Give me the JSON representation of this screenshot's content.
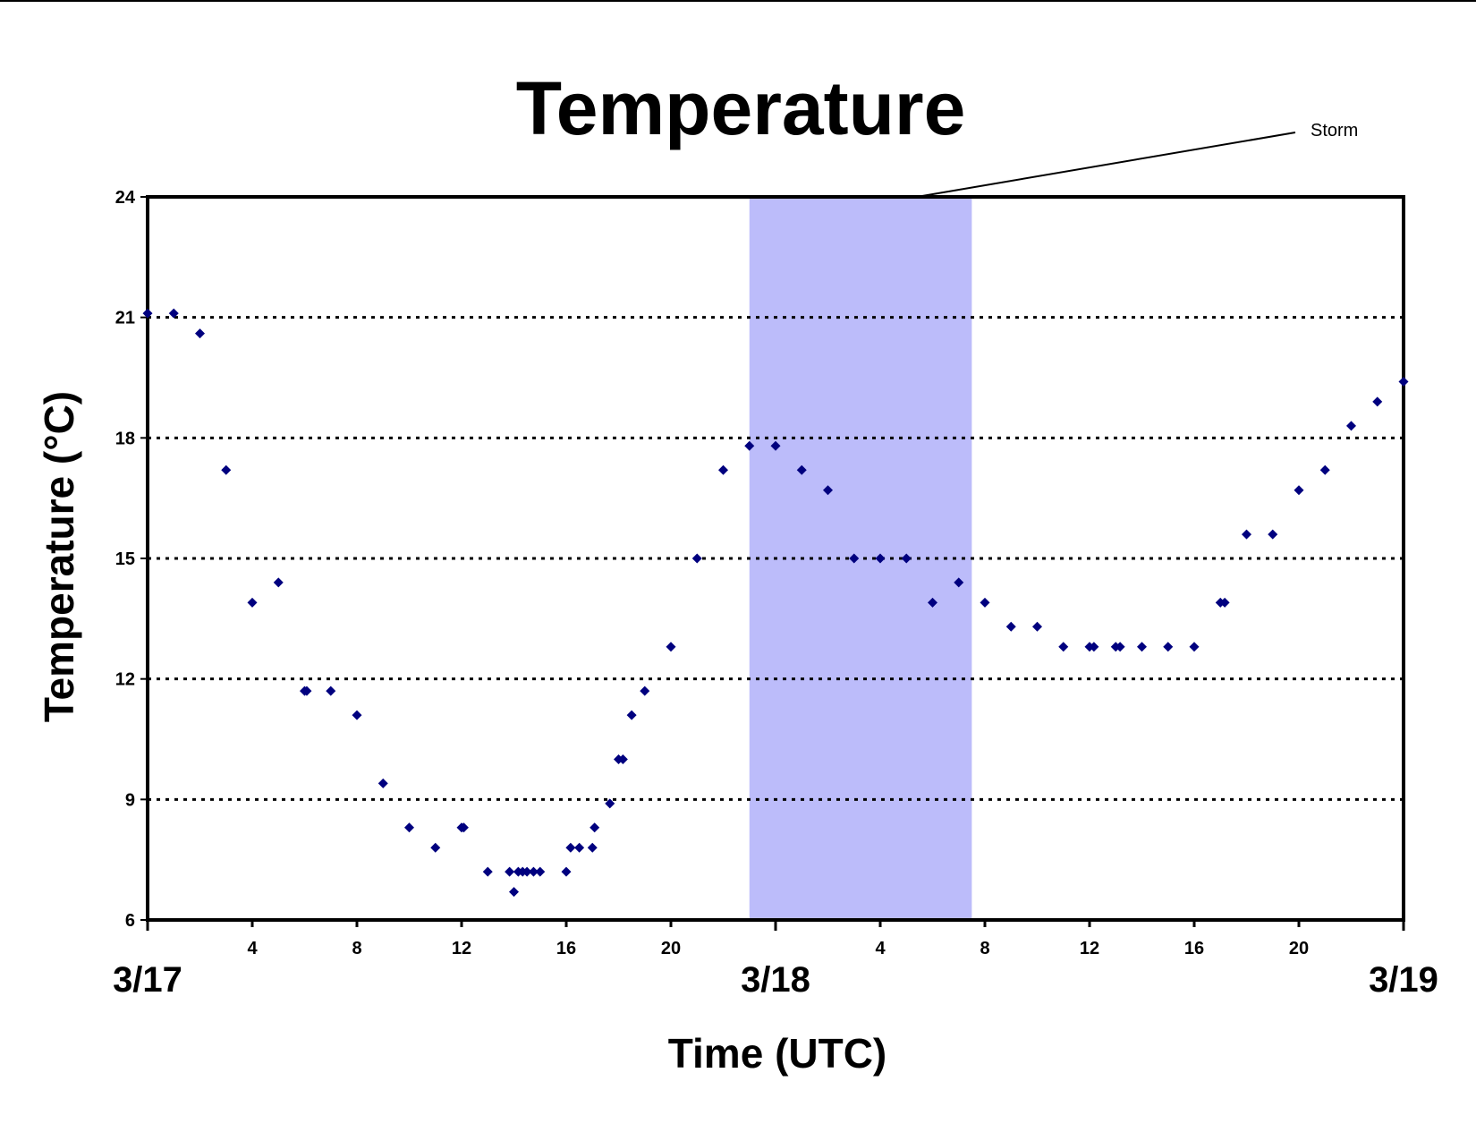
{
  "chart_data": {
    "type": "scatter",
    "title": "Temperature",
    "xlabel": "Time (UTC)",
    "ylabel": "Temperature (°C)",
    "ylim": [
      6,
      24
    ],
    "yticks": [
      6,
      9,
      12,
      15,
      18,
      21,
      24
    ],
    "xlim": [
      "3/17 00:00",
      "3/19 00:00"
    ],
    "x_hour_ticks": [
      "4",
      "8",
      "12",
      "16",
      "20",
      "4",
      "8",
      "12",
      "16",
      "20"
    ],
    "x_day_labels": [
      "3/17",
      "3/18",
      "3/19"
    ],
    "grid": "horizontal dotted",
    "marker_color": "#00007f",
    "shaded_color": "#bcbcfa",
    "annotations": [
      {
        "text": "Storm",
        "span": [
          "3/17 23:00",
          "3/18 07:30"
        ]
      }
    ],
    "series": [
      {
        "x": [
          "3/17 00:00",
          "3/17 01:00",
          "3/17 02:00",
          "3/17 03:00",
          "3/17 04:00",
          "3/17 05:00",
          "3/17 06:00",
          "3/17 06:05",
          "3/17 07:00",
          "3/17 08:00",
          "3/17 09:00",
          "3/17 10:00",
          "3/17 11:00",
          "3/17 12:00",
          "3/17 12:05",
          "3/17 13:00",
          "3/17 13:50",
          "3/17 14:00",
          "3/17 14:10",
          "3/17 14:20",
          "3/17 14:30",
          "3/17 14:45",
          "3/17 15:00",
          "3/17 16:00",
          "3/17 16:10",
          "3/17 16:30",
          "3/17 17:00",
          "3/17 17:05",
          "3/17 17:40",
          "3/17 18:00",
          "3/17 18:10",
          "3/17 18:30",
          "3/17 19:00",
          "3/17 20:00",
          "3/17 21:00",
          "3/17 22:00",
          "3/17 23:00",
          "3/18 00:00",
          "3/18 01:00",
          "3/18 02:00",
          "3/18 03:00",
          "3/18 04:00",
          "3/18 05:00",
          "3/18 06:00",
          "3/18 07:00",
          "3/18 08:00",
          "3/18 09:00",
          "3/18 10:00",
          "3/18 11:00",
          "3/18 12:00",
          "3/18 12:10",
          "3/18 13:00",
          "3/18 13:10",
          "3/18 14:00",
          "3/18 15:00",
          "3/18 16:00",
          "3/18 17:00",
          "3/18 17:10",
          "3/18 18:00",
          "3/18 19:00",
          "3/18 20:00",
          "3/18 21:00",
          "3/18 22:00",
          "3/18 23:00",
          "3/19 00:00"
        ],
        "y": [
          21.1,
          21.1,
          20.6,
          17.2,
          13.9,
          14.4,
          11.7,
          11.7,
          11.7,
          11.1,
          9.4,
          8.3,
          7.8,
          8.3,
          8.3,
          7.2,
          7.2,
          6.7,
          7.2,
          7.2,
          7.2,
          7.2,
          7.2,
          7.2,
          7.8,
          7.8,
          7.8,
          8.3,
          8.9,
          10.0,
          10.0,
          11.1,
          11.7,
          12.8,
          15.0,
          17.2,
          17.8,
          17.8,
          17.2,
          16.7,
          15.0,
          15.0,
          15.0,
          13.9,
          14.4,
          13.9,
          13.3,
          13.3,
          12.8,
          12.8,
          12.8,
          12.8,
          12.8,
          12.8,
          12.8,
          12.8,
          13.9,
          13.9,
          15.6,
          15.6,
          16.7,
          17.2,
          18.3,
          18.9,
          19.4
        ]
      }
    ]
  }
}
